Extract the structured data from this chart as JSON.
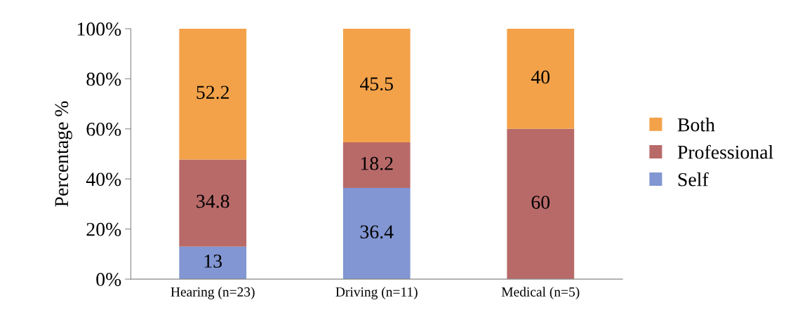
{
  "chart_data": {
    "type": "bar",
    "stacked": true,
    "ylabel": "Percentage %",
    "categories": [
      "Hearing (n=23)",
      "Driving (n=11)",
      "Medical (n=5)"
    ],
    "series": [
      {
        "name": "Self",
        "color": "#8196d2",
        "values": [
          13,
          36.4,
          0
        ],
        "value_labels": [
          "13",
          "36.4",
          null
        ]
      },
      {
        "name": "Professional",
        "color": "#b86a69",
        "values": [
          34.8,
          18.2,
          60
        ],
        "value_labels": [
          "34.8",
          "18.2",
          "60"
        ]
      },
      {
        "name": "Both",
        "color": "#f3a24a",
        "values": [
          52.2,
          45.5,
          40
        ],
        "value_labels": [
          "52.2",
          "45.5",
          "40"
        ]
      }
    ],
    "ylim": [
      0,
      100
    ],
    "yticks": [
      {
        "value": 0,
        "label": "0%"
      },
      {
        "value": 20,
        "label": "20%"
      },
      {
        "value": 40,
        "label": "40%"
      },
      {
        "value": 60,
        "label": "60%"
      },
      {
        "value": 80,
        "label": "80%"
      },
      {
        "value": 100,
        "label": "100%"
      }
    ],
    "grid": false,
    "legend": "right"
  }
}
